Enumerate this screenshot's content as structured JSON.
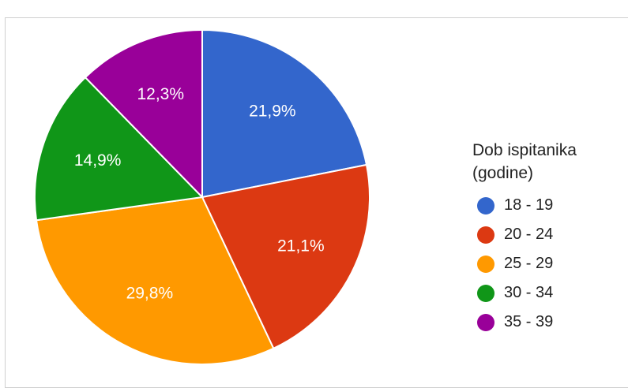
{
  "chart_data": {
    "type": "pie",
    "title": "",
    "legend_title": [
      "Dob ispitanika",
      "(godine)"
    ],
    "legend_position": "right",
    "categories": [
      "18 - 19",
      "20 - 24",
      "25 - 29",
      "30 - 34",
      "35 - 39"
    ],
    "values": [
      21.9,
      21.1,
      29.8,
      14.9,
      12.3
    ],
    "labels": [
      "21,9%",
      "21,1%",
      "29,8%",
      "14,9%",
      "12,3%"
    ],
    "colors": [
      "#3366cc",
      "#dc3912",
      "#ff9900",
      "#109618",
      "#990099"
    ],
    "start_angle_deg": 0,
    "direction": "clockwise"
  }
}
